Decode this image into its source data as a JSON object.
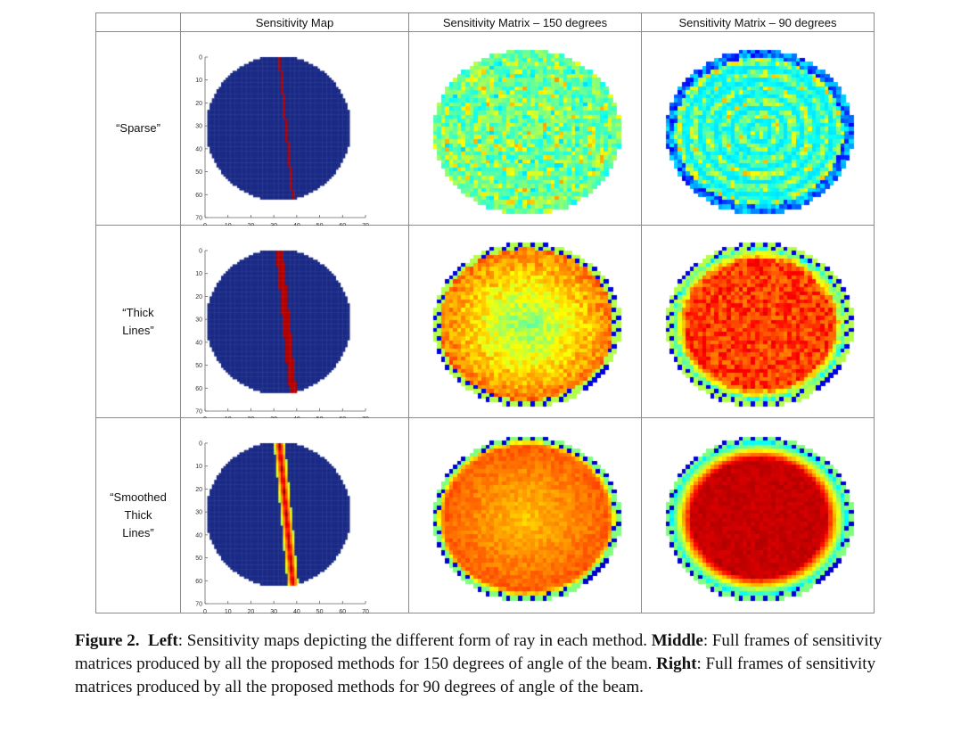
{
  "table": {
    "columns": [
      "",
      "Sensitivity Map",
      "Sensitivity Matrix – 150 degrees",
      "Sensitivity Matrix – 90 degrees"
    ],
    "rows": [
      {
        "label_lines": [
          "“Sparse”"
        ],
        "ray_style": "thin"
      },
      {
        "label_lines": [
          "“Thick",
          "Lines”"
        ],
        "ray_style": "thick"
      },
      {
        "label_lines": [
          "“Smoothed",
          "Thick",
          "Lines”"
        ],
        "ray_style": "smoothed"
      }
    ],
    "axis_ticks": {
      "x": [
        "0",
        "10",
        "20",
        "30",
        "40",
        "50",
        "60",
        "70"
      ],
      "y": [
        "0",
        "10",
        "20",
        "30",
        "40",
        "50",
        "60",
        "70"
      ]
    },
    "colors": {
      "map_background": "#1a2a86",
      "ray_red": "#b30000",
      "colormap": "jet"
    }
  },
  "caption": {
    "figure_label": "Figure 2.",
    "left_label": "Left",
    "left_text": ": Sensitivity maps depicting the different form of ray in each method. ",
    "middle_label": "Middle",
    "middle_text": ": Full frames of sensitivity matrices produced by all the proposed methods for 150 degrees of angle of the beam. ",
    "right_label": "Right",
    "right_text": ": Full frames of sensitivity matrices produced by all the proposed methods for 90 degrees of angle of the beam."
  }
}
